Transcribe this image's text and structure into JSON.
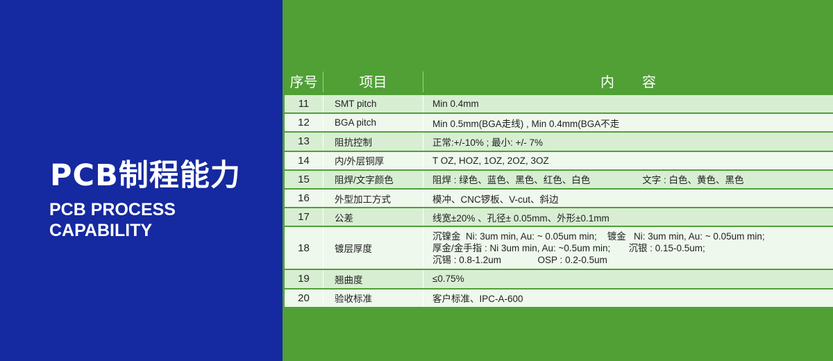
{
  "colors": {
    "left_panel": "#1529a0",
    "right_panel": "#50a036",
    "row_odd": "#d8eed3",
    "row_even": "#eef8ec"
  },
  "title": {
    "cn": "PCB制程能力",
    "en_line1": "PCB PROCESS",
    "en_line2": "CAPABILITY"
  },
  "table": {
    "headers": [
      "序号",
      "项目",
      "内　　容"
    ],
    "rows": [
      {
        "no": "11",
        "item": "SMT pitch",
        "content": [
          "Min 0.4mm"
        ]
      },
      {
        "no": "12",
        "item": "BGA pitch",
        "content": [
          "Min 0.5mm(BGA走线) , Min 0.4mm(BGA不走"
        ]
      },
      {
        "no": "13",
        "item": "阻抗控制",
        "content": [
          "正常:+/-10% ; 最小: +/- 7%"
        ]
      },
      {
        "no": "14",
        "item": "内/外层铜厚",
        "content": [
          "T OZ, HOZ, 1OZ, 2OZ, 3OZ"
        ]
      },
      {
        "no": "15",
        "item": "阻焊/文字颜色",
        "content": [
          "阻焊 : 绿色、蓝色、黑色、红色、白色                    文字 : 白色、黄色、黑色"
        ]
      },
      {
        "no": "16",
        "item": "外型加工方式",
        "content": [
          "模冲、CNC锣板、V-cut、斜边"
        ]
      },
      {
        "no": "17",
        "item": "公差",
        "content": [
          "线宽±20% 、孔径± 0.05mm、外形±0.1mm"
        ]
      },
      {
        "no": "18",
        "item": "镀层厚度",
        "content": [
          "沉镍金  Ni: 3um min, Au: ~ 0.05um min;    镀金   Ni: 3um min, Au: ~ 0.05um min;",
          "厚金/金手指 : Ni 3um min, Au: ~0.5um min;       沉银 : 0.15-0.5um;",
          "沉锡 : 0.8-1.2um              OSP : 0.2-0.5um"
        ]
      },
      {
        "no": "19",
        "item": "翘曲度",
        "content": [
          "≤0.75%"
        ]
      },
      {
        "no": "20",
        "item": "验收标准",
        "content": [
          "客户标准、IPC-A-600"
        ]
      }
    ]
  }
}
